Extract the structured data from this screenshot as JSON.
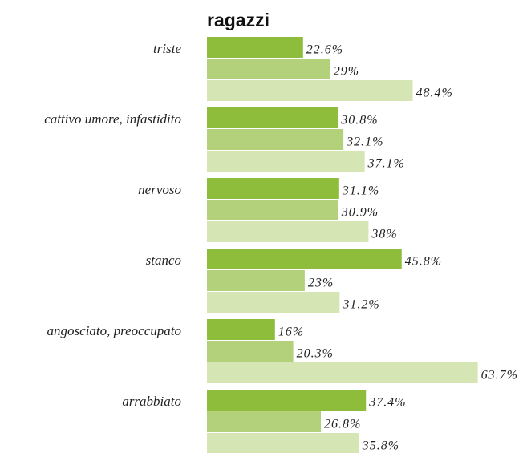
{
  "chart_data": {
    "type": "hbar",
    "title": "ragazzi",
    "categories": [
      "triste",
      "cattivo umore, infastidito",
      "nervoso",
      "stanco",
      "angosciato, preoccupato",
      "arrabbiato"
    ],
    "series": [
      {
        "color": "#8dbd3a",
        "values": [
          22.6,
          30.8,
          31.1,
          45.8,
          16,
          37.4
        ],
        "value_labels": [
          "22.6%",
          "30.8%",
          "31.1%",
          "45.8%",
          "16%",
          "37.4%"
        ]
      },
      {
        "color": "#b3d17b",
        "values": [
          29,
          32.1,
          30.9,
          23,
          20.3,
          26.8
        ],
        "value_labels": [
          "29%",
          "32.1%",
          "30.9%",
          "23%",
          "20.3%",
          "26.8%"
        ]
      },
      {
        "color": "#d6e5b4",
        "values": [
          48.4,
          37.1,
          38,
          31.2,
          63.7,
          35.8
        ],
        "value_labels": [
          "48.4%",
          "37.1%",
          "38%",
          "31.2%",
          "63.7%",
          "35.8%"
        ]
      }
    ]
  }
}
